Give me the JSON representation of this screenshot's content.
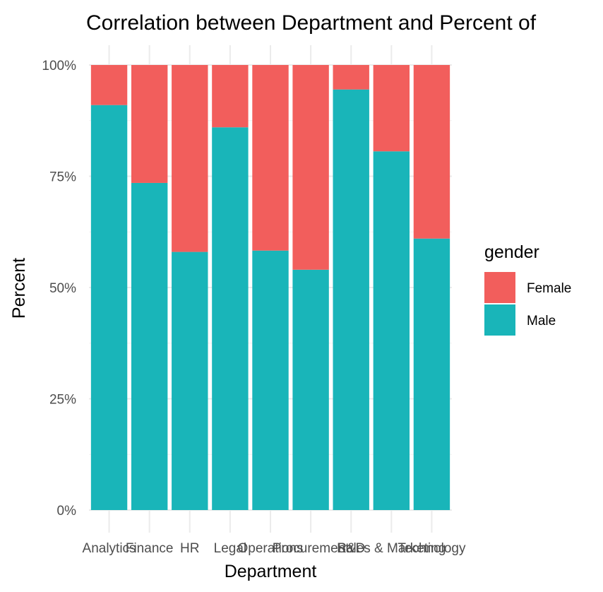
{
  "chart_data": {
    "type": "bar",
    "stacked": true,
    "normalized": true,
    "title": "Correlation between Department and Percent of",
    "xlabel": "Department",
    "ylabel": "Percent",
    "ylim": [
      0,
      1
    ],
    "yticks": [
      "0%",
      "25%",
      "50%",
      "75%",
      "100%"
    ],
    "yticks_values": [
      0,
      0.25,
      0.5,
      0.75,
      1
    ],
    "grid": true,
    "categories": [
      "Analytics",
      "Finance",
      "HR",
      "Legal",
      "Operations",
      "Procurement",
      "R&D",
      "Sales & Marketing",
      "Technology"
    ],
    "series": [
      {
        "name": "Male",
        "color": "#19b5b9",
        "values": [
          0.91,
          0.735,
          0.58,
          0.86,
          0.583,
          0.54,
          0.945,
          0.806,
          0.61
        ]
      },
      {
        "name": "Female",
        "color": "#f25e5c",
        "values": [
          0.09,
          0.265,
          0.42,
          0.14,
          0.417,
          0.46,
          0.055,
          0.194,
          0.39
        ]
      }
    ],
    "legend": {
      "title": "gender",
      "position": "right",
      "items": [
        {
          "label": "Female",
          "color": "#f25e5c"
        },
        {
          "label": "Male",
          "color": "#19b5b9"
        }
      ]
    }
  }
}
